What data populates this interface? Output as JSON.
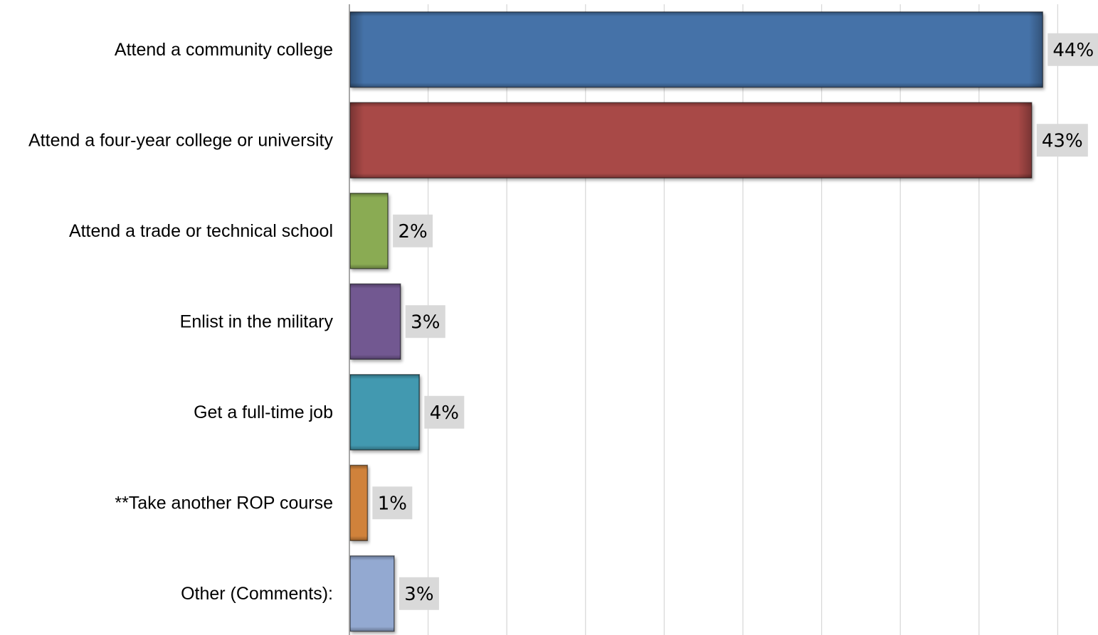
{
  "chart_data": {
    "type": "bar",
    "orientation": "horizontal",
    "categories": [
      "Attend a community college",
      "Attend a four-year college or university",
      "Attend a trade or technical school",
      "Enlist in the military",
      "Get a full-time job",
      "**Take another ROP course",
      "Other (Comments):"
    ],
    "values": [
      44,
      43.3,
      2.4,
      3.2,
      4.4,
      1.1,
      2.8
    ],
    "data_labels": [
      "44%",
      "43%",
      "2%",
      "3%",
      "4%",
      "1%",
      "3%"
    ],
    "colors": [
      "#4472a8",
      "#a84847",
      "#8aab52",
      "#725991",
      "#4299b0",
      "#d0823a",
      "#93a9d1"
    ],
    "unit": "%",
    "xlim": [
      0,
      45
    ],
    "grid": true,
    "legend": "none",
    "title": "",
    "xlabel": "",
    "ylabel": ""
  }
}
